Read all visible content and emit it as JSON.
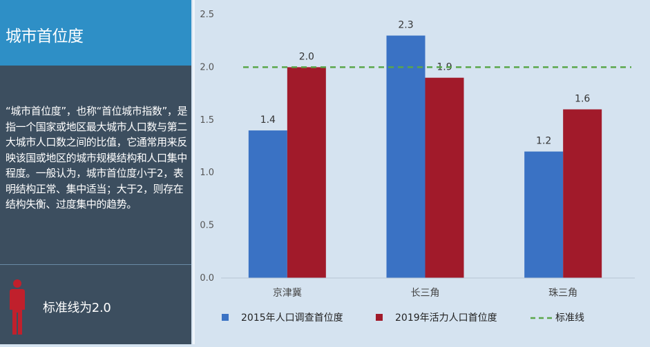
{
  "sidebar": {
    "title": "城市首位度",
    "description": "“城市首位度”，也称“首位城市指数”，是指一个国家或地区最大城市人口数与第二大城市人口数之间的比值，它通常用来反映该国或地区的城市规模结构和人口集中程度。一般认为，城市首位度小于2，表明结构正常、集中适当；大于2，则存在结构失衡、过度集中的趋势。",
    "note": "标准线为2.0",
    "icon": "person-icon"
  },
  "colors": {
    "header": "#2e8fc6",
    "sidebar": "#3c4e5f",
    "series_2015": "#3a72c4",
    "series_2019": "#a11a2a",
    "reference_line": "#5aa64a"
  },
  "chart_data": {
    "type": "bar",
    "categories": [
      "京津冀",
      "长三角",
      "珠三角"
    ],
    "series": [
      {
        "name": "2015年人口调查首位度",
        "values": [
          1.4,
          2.3,
          1.2
        ],
        "labels": [
          "1.4",
          "2.3",
          "1.2"
        ]
      },
      {
        "name": "2019年活力人口首位度",
        "values": [
          2.0,
          1.9,
          1.6
        ],
        "labels": [
          "2.0",
          "1.9",
          "1.6"
        ]
      }
    ],
    "reference_line": {
      "name": "标准线",
      "value": 2.0
    },
    "ylim": [
      0,
      2.5
    ],
    "yticks": [
      "0.0",
      "0.5",
      "1.0",
      "1.5",
      "2.0",
      "2.5"
    ],
    "grid": false,
    "legend_position": "bottom"
  }
}
